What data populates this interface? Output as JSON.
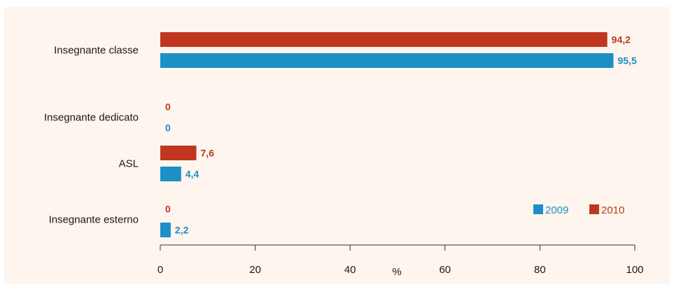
{
  "chart_data": {
    "type": "bar",
    "orientation": "horizontal",
    "categories": [
      "Insegnante classe",
      "Insegnante dedicato",
      "ASL",
      "Insegnante esterno"
    ],
    "series": [
      {
        "name": "2010",
        "values": [
          94.2,
          0,
          7.6,
          0
        ],
        "labels": [
          "94,2",
          "0",
          "7,6",
          "0"
        ],
        "color": "#c0361e"
      },
      {
        "name": "2009",
        "values": [
          95.5,
          0,
          4.4,
          2.2
        ],
        "labels": [
          "95,5",
          "0",
          "4,4",
          "2,2"
        ],
        "color": "#1c8fc6"
      }
    ],
    "xlabel": "%",
    "xlim": [
      0,
      100
    ],
    "xticks": [
      "0",
      "20",
      "40",
      "60",
      "80",
      "100"
    ],
    "xtick_values": [
      0,
      20,
      40,
      60,
      80,
      100
    ],
    "legend": {
      "placement": "bottom-right",
      "items": [
        {
          "label": "2009",
          "color": "#1c8fc6"
        },
        {
          "label": "2010",
          "color": "#c0361e"
        }
      ]
    },
    "grid": false
  }
}
